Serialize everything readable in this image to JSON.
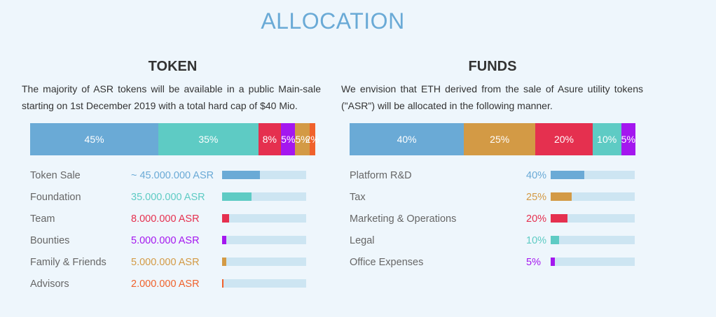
{
  "title": "ALLOCATION",
  "chart_data": [
    {
      "type": "stacked-bar",
      "title": "TOKEN",
      "description": "The majority of ASR tokens will be available in a public Main-sale starting on 1st December 2019 with a total hard cap of $40 Mio.",
      "xlim": [
        0,
        100
      ],
      "series": [
        {
          "name": "Token Sale",
          "color": "#6aaad6",
          "values": [
            45
          ],
          "value_labels": [
            "45%"
          ],
          "amount": "~ 45.000.000 ASR"
        },
        {
          "name": "Foundation",
          "color": "#5ecbc4",
          "values": [
            35
          ],
          "value_labels": [
            "35%"
          ],
          "amount": "35.000.000 ASR"
        },
        {
          "name": "Team",
          "color": "#e5304f",
          "values": [
            8
          ],
          "value_labels": [
            "8%"
          ],
          "amount": "8.000.000 ASR"
        },
        {
          "name": "Bounties",
          "color": "#a417ef",
          "values": [
            5
          ],
          "value_labels": [
            "5%"
          ],
          "amount": "5.000.000 ASR"
        },
        {
          "name": "Family & Friends",
          "color": "#d39a45",
          "values": [
            5
          ],
          "value_labels": [
            "5%"
          ],
          "amount": "5.000.000 ASR"
        },
        {
          "name": "Advisors",
          "color": "#f0612b",
          "values": [
            2
          ],
          "value_labels": [
            "2%"
          ],
          "amount": "2.000.000 ASR"
        }
      ]
    },
    {
      "type": "stacked-bar",
      "title": "FUNDS",
      "description": "We envision that ETH derived from the sale of Asure utility tokens (\"ASR\") will be allocated in the following manner.",
      "xlim": [
        0,
        100
      ],
      "series": [
        {
          "name": "Platform R&D",
          "color": "#6aaad6",
          "values": [
            40
          ],
          "value_labels": [
            "40%"
          ]
        },
        {
          "name": "Tax",
          "color": "#d39a45",
          "values": [
            25
          ],
          "value_labels": [
            "25%"
          ]
        },
        {
          "name": "Marketing & Operations",
          "color": "#e5304f",
          "values": [
            20
          ],
          "value_labels": [
            "20%"
          ]
        },
        {
          "name": "Legal",
          "color": "#5ecbc4",
          "values": [
            10
          ],
          "value_labels": [
            "10%"
          ]
        },
        {
          "name": "Office Expenses",
          "color": "#a417ef",
          "values": [
            5
          ],
          "value_labels": [
            "5%"
          ]
        }
      ]
    }
  ]
}
